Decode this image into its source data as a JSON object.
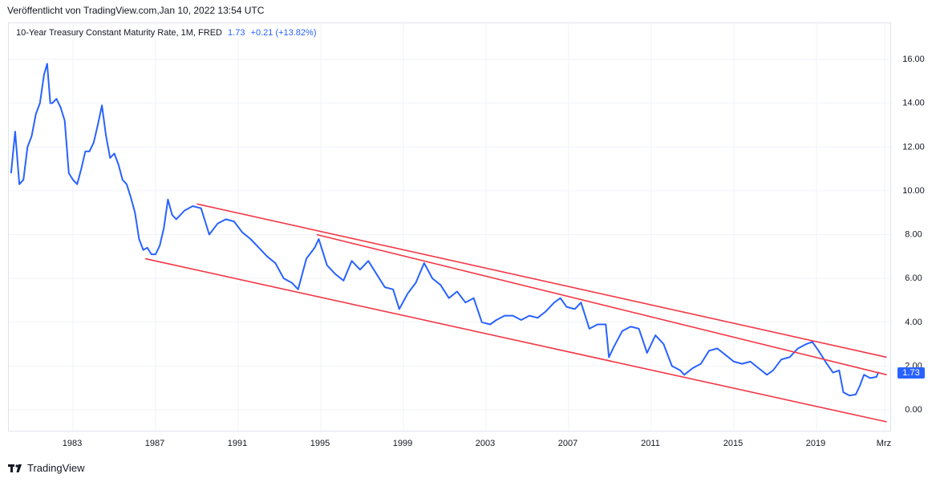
{
  "header": {
    "published": "Veröffentlicht von TradingView.com,Jan 10, 2022 13:54 UTC"
  },
  "legend": {
    "title": "10-Year Treasury Constant Maturity Rate, 1M, FRED",
    "last": "1.73",
    "change": "+0.21 (+13.82%)"
  },
  "price_tag": "1.73",
  "footer": {
    "brand": "TradingView"
  },
  "colors": {
    "line": "#2962ff",
    "channel": "#f23645",
    "grid": "#f0f3fa",
    "axis_text": "#131722"
  },
  "chart_data": {
    "type": "line",
    "title": "10-Year Treasury Constant Maturity Rate, 1M, FRED",
    "xlabel": "",
    "ylabel": "",
    "ylim": [
      -1,
      17.5
    ],
    "xlim": [
      1980.0,
      2022.5
    ],
    "y_ticks": [
      "16.00",
      "14.00",
      "12.00",
      "10.00",
      "8.00",
      "6.00",
      "4.00",
      "2.00",
      "0.00"
    ],
    "x_ticks": [
      "1983",
      "1987",
      "1991",
      "1995",
      "1999",
      "2003",
      "2007",
      "2011",
      "2015",
      "2019",
      "Mrz"
    ],
    "x_tick_positions": [
      1983,
      1987,
      1991,
      1995,
      1999,
      2003,
      2007,
      2011,
      2015,
      2019,
      2022.3
    ],
    "grid": true,
    "series": [
      {
        "name": "",
        "x": [
          1980.0,
          1980.2,
          1980.4,
          1980.6,
          1980.8,
          1981.0,
          1981.2,
          1981.4,
          1981.6,
          1981.75,
          1981.9,
          1982.0,
          1982.2,
          1982.4,
          1982.6,
          1982.8,
          1983.0,
          1983.2,
          1983.4,
          1983.6,
          1983.8,
          1984.0,
          1984.2,
          1984.4,
          1984.6,
          1984.8,
          1985.0,
          1985.2,
          1985.4,
          1985.6,
          1985.8,
          1986.0,
          1986.2,
          1986.4,
          1986.6,
          1986.8,
          1987.0,
          1987.2,
          1987.4,
          1987.6,
          1987.8,
          1988.0,
          1988.4,
          1988.8,
          1989.2,
          1989.6,
          1990.0,
          1990.4,
          1990.8,
          1991.2,
          1991.6,
          1992.0,
          1992.4,
          1992.8,
          1993.2,
          1993.6,
          1993.9,
          1994.3,
          1994.7,
          1994.9,
          1995.3,
          1995.7,
          1996.1,
          1996.5,
          1996.9,
          1997.3,
          1997.7,
          1998.1,
          1998.5,
          1998.8,
          1999.2,
          1999.6,
          2000.0,
          2000.4,
          2000.8,
          2001.2,
          2001.6,
          2002.0,
          2002.4,
          2002.8,
          2003.2,
          2003.5,
          2003.9,
          2004.3,
          2004.7,
          2005.1,
          2005.5,
          2005.9,
          2006.3,
          2006.6,
          2006.9,
          2007.3,
          2007.6,
          2008.0,
          2008.4,
          2008.8,
          2008.95,
          2009.2,
          2009.6,
          2010.0,
          2010.4,
          2010.8,
          2011.2,
          2011.6,
          2012.0,
          2012.4,
          2012.6,
          2013.0,
          2013.4,
          2013.8,
          2014.2,
          2014.6,
          2015.0,
          2015.4,
          2015.8,
          2016.2,
          2016.6,
          2016.9,
          2017.3,
          2017.7,
          2018.1,
          2018.5,
          2018.8,
          2019.1,
          2019.5,
          2019.8,
          2020.1,
          2020.3,
          2020.6,
          2020.9,
          2021.1,
          2021.3,
          2021.6,
          2021.9,
          2022.0
        ],
        "y": [
          10.8,
          12.7,
          10.3,
          10.5,
          12.0,
          12.5,
          13.5,
          14.0,
          15.3,
          15.8,
          14.0,
          14.0,
          14.2,
          13.8,
          13.2,
          10.8,
          10.5,
          10.3,
          11.0,
          11.8,
          11.8,
          12.2,
          13.0,
          13.9,
          12.5,
          11.5,
          11.7,
          11.2,
          10.5,
          10.3,
          9.7,
          9.0,
          7.8,
          7.3,
          7.4,
          7.1,
          7.1,
          7.5,
          8.3,
          9.6,
          8.9,
          8.7,
          9.1,
          9.3,
          9.2,
          8.0,
          8.5,
          8.7,
          8.6,
          8.1,
          7.8,
          7.4,
          7.0,
          6.7,
          6.0,
          5.8,
          5.5,
          6.9,
          7.4,
          7.8,
          6.6,
          6.2,
          5.9,
          6.8,
          6.4,
          6.8,
          6.2,
          5.6,
          5.5,
          4.6,
          5.3,
          5.8,
          6.7,
          6.0,
          5.7,
          5.1,
          5.4,
          4.9,
          5.1,
          4.0,
          3.9,
          4.1,
          4.3,
          4.3,
          4.1,
          4.3,
          4.2,
          4.5,
          4.9,
          5.1,
          4.7,
          4.6,
          4.9,
          3.7,
          3.9,
          3.9,
          2.4,
          2.9,
          3.6,
          3.8,
          3.7,
          2.6,
          3.4,
          3.0,
          2.0,
          1.8,
          1.6,
          1.9,
          2.1,
          2.7,
          2.8,
          2.5,
          2.2,
          2.1,
          2.2,
          1.9,
          1.6,
          1.8,
          2.3,
          2.4,
          2.8,
          3.0,
          3.1,
          2.7,
          2.1,
          1.7,
          1.8,
          0.8,
          0.65,
          0.7,
          1.1,
          1.6,
          1.45,
          1.5,
          1.73
        ]
      }
    ],
    "annotations": {
      "channel_upper": [
        [
          1989.0,
          9.4
        ],
        [
          2022.4,
          2.4
        ]
      ],
      "channel_mid": [
        [
          1994.8,
          8.0
        ],
        [
          2022.4,
          1.6
        ]
      ],
      "channel_lower": [
        [
          1986.5,
          6.9
        ],
        [
          2022.4,
          -0.55
        ]
      ]
    }
  }
}
